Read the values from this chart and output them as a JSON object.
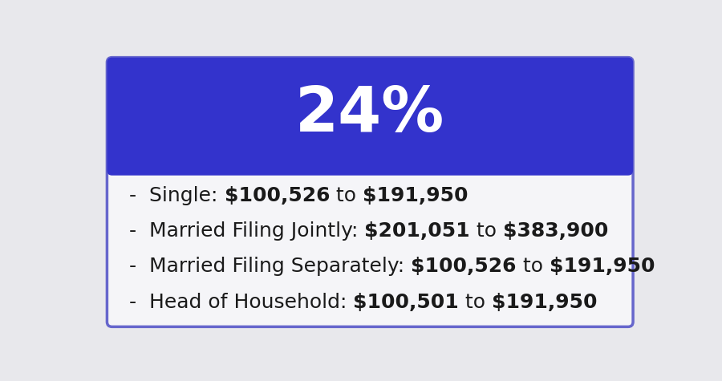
{
  "title": "24%",
  "title_color": "#ffffff",
  "title_bg_color": "#3333cc",
  "card_bg_color": "#f5f5f8",
  "card_border_color": "#6666cc",
  "outer_bg_color": "#e8e8ec",
  "rows": [
    {
      "label": "Single: ",
      "value_parts": [
        "$100,526",
        " to ",
        "$191,950"
      ]
    },
    {
      "label": "Married Filing Jointly: ",
      "value_parts": [
        "$201,051",
        " to ",
        "$383,900"
      ]
    },
    {
      "label": "Married Filing Separately: ",
      "value_parts": [
        "$100,526",
        " to ",
        "$191,950"
      ]
    },
    {
      "label": "Head of Household: ",
      "value_parts": [
        "$100,501",
        " to ",
        "$191,950"
      ]
    }
  ],
  "bullet": "-",
  "label_color": "#1a1a1a",
  "value_color": "#1a1a1a",
  "label_fontsize": 18,
  "value_fontsize": 18,
  "title_fontsize": 56
}
